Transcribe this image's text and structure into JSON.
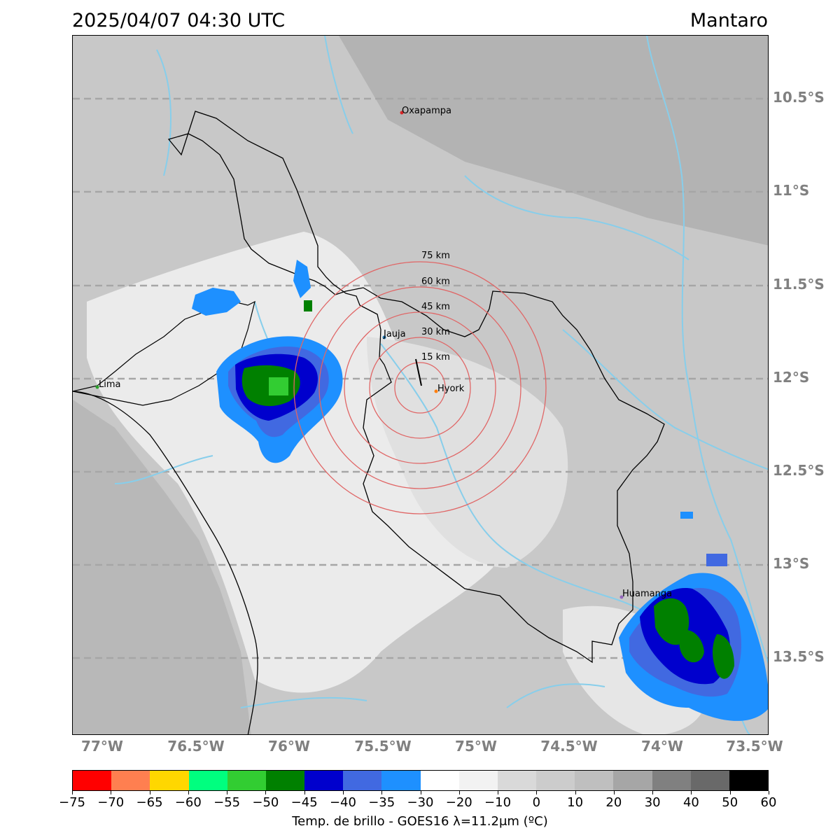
{
  "header": {
    "timestamp": "2025/04/07 04:30 UTC",
    "basin": "Mantaro"
  },
  "map": {
    "lat_labels": [
      "10.5°S",
      "11°S",
      "11.5°S",
      "12°S",
      "12.5°S",
      "13°S",
      "13.5°S"
    ],
    "lon_labels": [
      "77°W",
      "76.5°W",
      "76°W",
      "75.5°W",
      "75°W",
      "74.5°W",
      "74°W",
      "73.5°W"
    ],
    "cities": [
      {
        "name": "Oxapampa",
        "color": "#d62728"
      },
      {
        "name": "Jauja",
        "color": "#1f77b4"
      },
      {
        "name": "Hyork",
        "color": "#ff7f0e"
      },
      {
        "name": "Lima",
        "color": "#2ca02c"
      },
      {
        "name": "Huamanga",
        "color": "#9467bd"
      }
    ],
    "range_rings": [
      "15 km",
      "30 km",
      "45 km",
      "60 km",
      "75 km"
    ],
    "ring_color": "#e06666",
    "river_color": "#87ceeb"
  },
  "colorbar": {
    "ticks": [
      "−75",
      "−70",
      "−65",
      "−60",
      "−55",
      "−50",
      "−45",
      "−40",
      "−35",
      "−30",
      "−20",
      "−10",
      "0",
      "10",
      "20",
      "30",
      "40",
      "50",
      "60"
    ],
    "colors": [
      "#ff0000",
      "#ff7f50",
      "#ffd700",
      "#00ff7f",
      "#32cd32",
      "#008000",
      "#0000cd",
      "#4169e1",
      "#1e90ff",
      "#ffffff",
      "#f2f2f2",
      "#d9d9d9",
      "#cccccc",
      "#bfbfbf",
      "#a6a6a6",
      "#808080",
      "#696969",
      "#000000"
    ],
    "label": "Temp. de brillo - GOES16 λ=11.2μm (ºC)"
  }
}
